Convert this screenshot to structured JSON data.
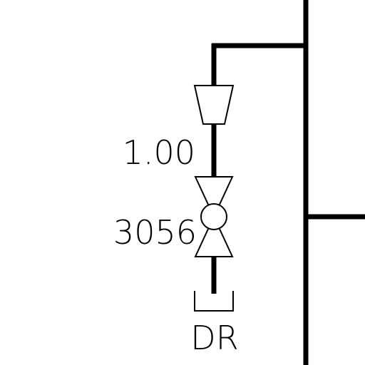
{
  "diagram": {
    "size_label": "1.00",
    "valve_tag": "3056",
    "drain_label": "DR",
    "colors": {
      "background": "#ffffff",
      "line": "#000000"
    },
    "symbols": [
      "reducer-symbol",
      "gate-valve-symbol",
      "drain-cup-symbol"
    ]
  }
}
